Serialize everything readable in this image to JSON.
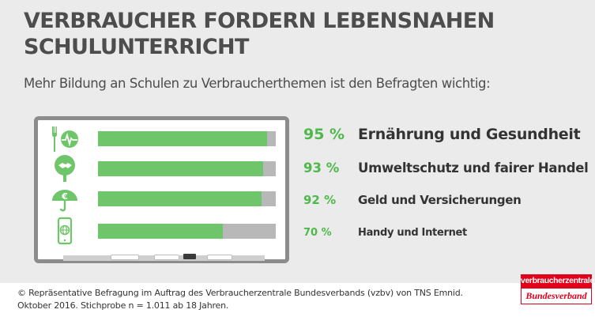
{
  "header": {
    "title": "VERBRAUCHER FORDERN LEBENSNAHEN SCHULUNTERRICHT",
    "subtitle": "Mehr Bildung an Schulen zu Verbraucherthemen ist den Befragten wichtig:"
  },
  "chart_data": {
    "type": "bar",
    "orientation": "horizontal",
    "title": "VERBRAUCHER FORDERN LEBENSNAHEN SCHULUNTERRICHT",
    "subtitle": "Mehr Bildung an Schulen zu Verbraucherthemen ist den Befragten wichtig:",
    "categories": [
      "Ernährung und Gesundheit",
      "Umweltschutz und fairer Handel",
      "Geld und Versicherungen",
      "Handy und Internet"
    ],
    "values": [
      95,
      93,
      92,
      70
    ],
    "value_labels": [
      "95 %",
      "93 %",
      "92 %",
      "70 %"
    ],
    "icons": [
      "fork-knife-heartbeat-icon",
      "handshake-tree-icon",
      "euro-umbrella-icon",
      "smartphone-globe-icon"
    ],
    "xlim": [
      0,
      100
    ],
    "grid": false,
    "colors": {
      "bar": "#6fc56a",
      "track": "#b8b8b8",
      "value_text": "#4fb84a"
    }
  },
  "footer": {
    "line1": "© Repräsentative Befragung im Auftrag des Verbraucherzentrale Bundesverbands (vzbv) von TNS Emnid.",
    "line2": "Oktober 2016. Stichprobe n = 1.011 ab 18 Jahren."
  },
  "logo": {
    "top": "verbraucherzentrale",
    "bottom": "Bundesverband",
    "color": "#e3001b"
  }
}
